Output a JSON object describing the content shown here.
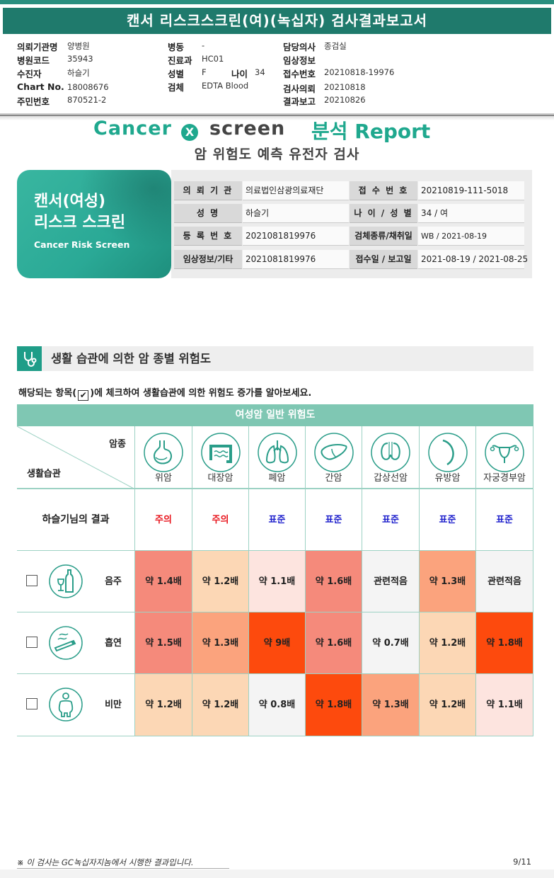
{
  "header": {
    "title": "캔서 리스크스크린(여)(녹십자) 검사결과보고서",
    "fields": [
      {
        "label": "의뢰기관명",
        "value": "양병원"
      },
      {
        "label": "병원코드",
        "value": "35943"
      },
      {
        "label": "수진자",
        "value": "하슬기"
      },
      {
        "label": "Chart No.",
        "value": "18008676"
      },
      {
        "label": "주민번호",
        "value": "870521-2"
      },
      {
        "label": "병동",
        "value": "-"
      },
      {
        "label": "진료과",
        "value": "HC01"
      },
      {
        "label": "성별",
        "value": "F"
      },
      {
        "label": "나이",
        "value": "34"
      },
      {
        "label": "검체",
        "value": "EDTA Blood"
      },
      {
        "label": "담당의사",
        "value": "종검실"
      },
      {
        "label": "임상정보",
        "value": ""
      },
      {
        "label": "접수번호",
        "value": "20210818-19976"
      },
      {
        "label": "검사의뢰",
        "value": "20210818"
      },
      {
        "label": "결과보고",
        "value": "20210826"
      }
    ]
  },
  "logo": {
    "cancer": "Cancer",
    "x": "X",
    "screen": "screen",
    "report": "분석 Report"
  },
  "subtitle": "암 위험도 예측 유전자 검사",
  "card": {
    "line1": "캔서(여성)",
    "line2": "리스크 스크린",
    "line3": "Cancer Risk Screen"
  },
  "info": [
    {
      "label": "의 뢰 기 관",
      "value": "의료법인삼광의료재단"
    },
    {
      "label": "접 수 번 호",
      "value": "20210819-111-5018"
    },
    {
      "label": "성 명",
      "value": "하슬기"
    },
    {
      "label": "나 이 / 성 별",
      "value": "34 / 여"
    },
    {
      "label": "등 록 번 호",
      "value": "2021081819976"
    },
    {
      "label": "검체종류/채취일",
      "value": "WB / 2021-08-19"
    },
    {
      "label": "임상정보/기타",
      "value": "2021081819976"
    },
    {
      "label": "접수일 / 보고일",
      "value": "2021-08-19 / 2021-08-25"
    }
  ],
  "section": {
    "title": "생활 습관에 의한 암 종별 위험도",
    "instruction_pre": "해당되는 항목(",
    "instruction_check": "✔",
    "instruction_post": ")에 체크하여 생활습관에 의한 위험도 증가를 알아보세요."
  },
  "table": {
    "header": "여성암 일반 위험도",
    "corner_top": "암종",
    "corner_bottom": "생활습관",
    "cancers": [
      "위암",
      "대장암",
      "폐암",
      "간암",
      "갑상선암",
      "유방암",
      "자궁경부암"
    ],
    "result_label": "하슬기님의 결과",
    "results": [
      "주의",
      "주의",
      "표준",
      "표준",
      "표준",
      "표준",
      "표준"
    ],
    "result_colors": {
      "주의": "#e8141c",
      "표준": "#1d1fcc"
    },
    "rows": [
      {
        "label": "음주",
        "icon": "alcohol-icon",
        "values": [
          "약 1.4배",
          "약 1.2배",
          "약 1.1배",
          "약 1.6배",
          "관련적음",
          "약 1.3배",
          "관련적음"
        ],
        "colors": [
          "#f58a7b",
          "#fcd7b5",
          "#fde4df",
          "#f58a7b",
          "#f4f4f4",
          "#fba37d",
          "#f4f4f4"
        ]
      },
      {
        "label": "흡연",
        "icon": "smoking-icon",
        "values": [
          "약 1.5배",
          "약 1.3배",
          "약 9배",
          "약 1.6배",
          "약 0.7배",
          "약 1.2배",
          "약 1.8배"
        ],
        "colors": [
          "#f58a7b",
          "#fba37d",
          "#fd4a0d",
          "#f58a7b",
          "#f4f4f4",
          "#fcd7b5",
          "#fd4a0d"
        ]
      },
      {
        "label": "비만",
        "icon": "obesity-icon",
        "values": [
          "약 1.2배",
          "약 1.2배",
          "약 0.8배",
          "약 1.8배",
          "약 1.3배",
          "약 1.2배",
          "약 1.1배"
        ],
        "colors": [
          "#fcd7b5",
          "#fcd7b5",
          "#f4f4f4",
          "#fd4a0d",
          "#fba37d",
          "#fcd7b5",
          "#fde4df"
        ]
      }
    ]
  },
  "footer": {
    "note": "※ 이 검사는 GC녹십자지놈에서 시행한 결과입니다.",
    "page": "9/11"
  }
}
